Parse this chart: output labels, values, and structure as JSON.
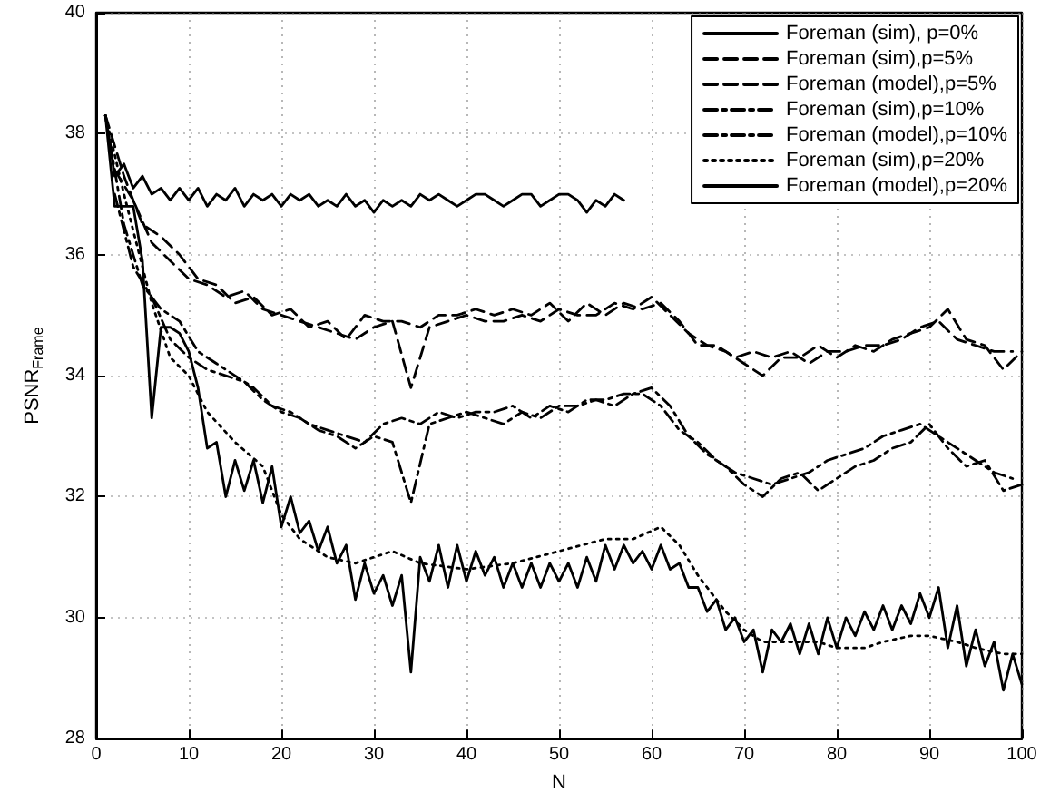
{
  "chart_data": {
    "type": "line",
    "xlabel": "N",
    "ylabel": "PSNR$_{Frame}$",
    "xlim": [
      0,
      100
    ],
    "ylim": [
      28,
      40
    ],
    "xticks": [
      0,
      10,
      20,
      30,
      40,
      50,
      60,
      70,
      80,
      90,
      100
    ],
    "yticks": [
      28,
      30,
      32,
      34,
      36,
      38,
      40
    ],
    "grid": true,
    "legend": "top right",
    "marker": "none",
    "x": [
      1,
      2,
      3,
      4,
      5,
      6,
      7,
      8,
      9,
      10,
      11,
      12,
      13,
      14,
      15,
      16,
      17,
      18,
      19,
      20,
      21,
      22,
      23,
      24,
      25,
      26,
      27,
      28,
      29,
      30,
      31,
      32,
      33,
      34,
      35,
      36,
      37,
      38,
      39,
      40,
      41,
      42,
      43,
      44,
      45,
      46,
      47,
      48,
      49,
      50,
      51,
      52,
      53,
      54,
      55,
      56,
      57,
      58,
      59,
      60,
      61,
      62,
      63,
      64,
      65,
      66,
      67,
      68,
      69,
      70,
      71,
      72,
      73,
      74,
      75,
      76,
      77,
      78,
      79,
      80,
      81,
      82,
      83,
      84,
      85,
      86,
      87,
      88,
      89,
      90,
      91,
      92,
      93,
      94,
      95,
      96,
      97,
      98,
      99,
      100
    ],
    "series": [
      {
        "name": "Foreman (sim), p=0%",
        "color": "#000000",
        "line_style": "solid",
        "x": [
          1,
          2,
          3,
          4,
          5,
          6,
          7,
          8,
          9,
          10,
          11,
          12,
          13,
          14,
          15,
          16,
          17,
          18,
          19,
          20,
          21,
          22,
          23,
          24,
          25,
          26,
          27,
          28,
          29,
          30,
          31,
          32,
          33,
          34,
          35,
          36,
          37,
          38,
          39,
          40,
          41,
          42,
          43,
          44,
          45,
          46,
          47,
          48,
          49,
          50,
          51,
          52,
          53,
          54,
          55,
          56,
          57
        ],
        "values": [
          38.3,
          37.3,
          37.5,
          37.1,
          37.3,
          37.0,
          37.1,
          36.9,
          37.1,
          36.9,
          37.1,
          36.8,
          37.0,
          36.9,
          37.1,
          36.8,
          37.0,
          36.9,
          37.0,
          36.8,
          37.0,
          36.9,
          37.0,
          36.8,
          36.9,
          36.8,
          37.0,
          36.8,
          36.9,
          36.7,
          36.9,
          36.8,
          36.9,
          36.8,
          37.0,
          36.9,
          37.0,
          36.9,
          36.8,
          36.9,
          37.0,
          37.0,
          36.9,
          36.8,
          36.9,
          37.0,
          37.0,
          36.8,
          36.9,
          37.0,
          37.0,
          36.9,
          36.7,
          36.9,
          36.8,
          37.0,
          36.9
        ]
      },
      {
        "name": "Foreman (sim),p=5%",
        "color": "#000000",
        "line_style": "dashed",
        "x": [
          1,
          3,
          5,
          7,
          9,
          11,
          13,
          15,
          17,
          19,
          21,
          23,
          25,
          27,
          29,
          31,
          33,
          35,
          37,
          39,
          41,
          43,
          45,
          47,
          49,
          51,
          53,
          55,
          57,
          59,
          61,
          63,
          65,
          67,
          69,
          71,
          73,
          75,
          77,
          79,
          81,
          83,
          85,
          87,
          89,
          91,
          93,
          95,
          97,
          99
        ],
        "values": [
          38.3,
          37.3,
          36.5,
          36.3,
          36.0,
          35.6,
          35.5,
          35.2,
          35.3,
          35.0,
          35.1,
          34.8,
          34.9,
          34.6,
          35.0,
          34.9,
          34.9,
          34.8,
          35.0,
          35.0,
          35.1,
          35.0,
          35.1,
          35.0,
          35.2,
          34.9,
          35.2,
          35.0,
          35.2,
          35.1,
          35.2,
          34.9,
          34.5,
          34.5,
          34.3,
          34.4,
          34.3,
          34.4,
          34.2,
          34.4,
          34.4,
          34.5,
          34.5,
          34.6,
          34.8,
          34.9,
          34.6,
          34.5,
          34.4,
          34.4
        ]
      },
      {
        "name": "Foreman (model),p=5%",
        "color": "#000000",
        "line_style": "dashed",
        "x": [
          2,
          4,
          6,
          8,
          10,
          12,
          14,
          16,
          18,
          20,
          22,
          24,
          26,
          28,
          30,
          32,
          34,
          36,
          38,
          40,
          42,
          44,
          46,
          48,
          50,
          52,
          54,
          56,
          58,
          60,
          62,
          64,
          66,
          68,
          70,
          72,
          74,
          76,
          78,
          80,
          82,
          84,
          86,
          88,
          90,
          92,
          94,
          96,
          98,
          100
        ],
        "values": [
          37.4,
          36.9,
          36.2,
          35.9,
          35.6,
          35.5,
          35.3,
          35.4,
          35.1,
          35.0,
          34.9,
          34.8,
          34.7,
          34.6,
          34.8,
          34.9,
          33.8,
          34.8,
          34.9,
          35.0,
          34.9,
          34.9,
          35.0,
          34.9,
          35.1,
          35.0,
          35.0,
          35.2,
          35.1,
          35.3,
          35.0,
          34.7,
          34.5,
          34.4,
          34.2,
          34.0,
          34.3,
          34.3,
          34.5,
          34.3,
          34.5,
          34.4,
          34.6,
          34.7,
          34.8,
          35.1,
          34.6,
          34.5,
          34.1,
          34.4
        ]
      },
      {
        "name": "Foreman (sim),p=10%",
        "color": "#000000",
        "line_style": "dashdot",
        "x": [
          1,
          3,
          5,
          7,
          9,
          11,
          13,
          15,
          17,
          19,
          21,
          23,
          25,
          27,
          29,
          31,
          33,
          35,
          37,
          39,
          41,
          43,
          45,
          47,
          49,
          51,
          53,
          55,
          57,
          59,
          61,
          63,
          65,
          67,
          69,
          71,
          73,
          75,
          77,
          79,
          81,
          83,
          85,
          87,
          89,
          91,
          93,
          95,
          97,
          99
        ],
        "values": [
          38.3,
          36.5,
          35.5,
          35.1,
          34.9,
          34.4,
          34.2,
          34.0,
          33.8,
          33.5,
          33.4,
          33.2,
          33.1,
          33.0,
          32.9,
          33.2,
          33.3,
          33.2,
          33.4,
          33.3,
          33.4,
          33.4,
          33.5,
          33.3,
          33.5,
          33.4,
          33.6,
          33.6,
          33.7,
          33.7,
          33.5,
          33.1,
          32.9,
          32.6,
          32.4,
          32.3,
          32.2,
          32.3,
          32.4,
          32.6,
          32.7,
          32.8,
          33.0,
          33.1,
          33.2,
          33.0,
          32.8,
          32.6,
          32.4,
          32.3
        ]
      },
      {
        "name": "Foreman (model),p=10%",
        "color": "#000000",
        "line_style": "dashdot",
        "x": [
          2,
          4,
          6,
          8,
          10,
          12,
          14,
          16,
          18,
          20,
          22,
          24,
          26,
          28,
          30,
          32,
          34,
          36,
          38,
          40,
          42,
          44,
          46,
          48,
          50,
          52,
          54,
          56,
          58,
          60,
          62,
          64,
          66,
          68,
          70,
          72,
          74,
          76,
          78,
          80,
          82,
          84,
          86,
          88,
          90,
          92,
          94,
          96,
          98,
          100
        ],
        "values": [
          37.0,
          35.8,
          35.3,
          34.6,
          34.3,
          34.1,
          34.0,
          33.9,
          33.6,
          33.4,
          33.3,
          33.1,
          33.0,
          32.8,
          33.0,
          32.9,
          31.9,
          33.2,
          33.3,
          33.4,
          33.3,
          33.2,
          33.4,
          33.3,
          33.5,
          33.5,
          33.6,
          33.5,
          33.7,
          33.8,
          33.5,
          33.0,
          32.7,
          32.5,
          32.2,
          32.0,
          32.3,
          32.4,
          32.1,
          32.3,
          32.5,
          32.6,
          32.8,
          32.9,
          33.2,
          32.8,
          32.5,
          32.6,
          32.1,
          32.2
        ]
      },
      {
        "name": "Foreman (sim),p=20%",
        "color": "#000000",
        "line_style": "dotted",
        "x": [
          1,
          3,
          6,
          8,
          10,
          12,
          15,
          18,
          20,
          22,
          25,
          28,
          30,
          32,
          35,
          40,
          45,
          50,
          55,
          58,
          61,
          63,
          65,
          68,
          70,
          72,
          75,
          78,
          80,
          83,
          85,
          88,
          90,
          93,
          95,
          98,
          100
        ],
        "values": [
          38.3,
          37.0,
          35.2,
          34.3,
          34.0,
          33.4,
          32.9,
          32.5,
          31.7,
          31.3,
          31.0,
          30.9,
          31.0,
          31.1,
          30.9,
          30.8,
          30.9,
          31.1,
          31.3,
          31.3,
          31.5,
          31.2,
          30.7,
          30.1,
          29.8,
          29.6,
          29.6,
          29.6,
          29.5,
          29.5,
          29.6,
          29.7,
          29.7,
          29.6,
          29.5,
          29.4,
          29.4
        ]
      },
      {
        "name": "Foreman (model),p=20%",
        "color": "#000000",
        "line_style": "solid",
        "values": [
          38.3,
          36.8,
          36.8,
          36.8,
          35.9,
          33.3,
          34.8,
          34.8,
          34.7,
          34.4,
          33.8,
          32.8,
          32.9,
          32.0,
          32.6,
          32.1,
          32.6,
          31.9,
          32.5,
          31.5,
          32.0,
          31.4,
          31.6,
          31.1,
          31.5,
          30.9,
          31.2,
          30.3,
          30.9,
          30.4,
          30.7,
          30.2,
          30.7,
          29.1,
          31.0,
          30.6,
          31.2,
          30.5,
          31.2,
          30.6,
          31.1,
          30.7,
          31.0,
          30.5,
          30.9,
          30.5,
          30.9,
          30.5,
          30.9,
          30.6,
          30.9,
          30.5,
          31.0,
          30.6,
          31.2,
          30.8,
          31.2,
          30.9,
          31.1,
          30.8,
          31.2,
          30.8,
          30.9,
          30.5,
          30.5,
          30.1,
          30.3,
          29.8,
          30.0,
          29.6,
          29.8,
          29.1,
          29.8,
          29.6,
          29.9,
          29.4,
          29.9,
          29.4,
          30.0,
          29.5,
          30.0,
          29.7,
          30.1,
          29.8,
          30.2,
          29.8,
          30.2,
          29.9,
          30.4,
          30.0,
          30.5,
          29.5,
          30.2,
          29.2,
          29.8,
          29.2,
          29.6,
          28.8,
          29.4,
          28.9
        ]
      }
    ]
  }
}
